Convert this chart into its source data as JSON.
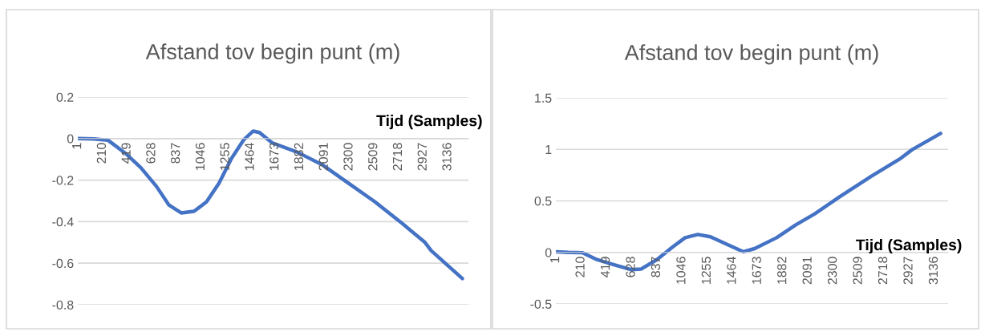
{
  "chart_data": [
    {
      "type": "line",
      "title": "Afstand tov begin punt (m)",
      "xlabel": "Tijd (Samples)",
      "xlim": [
        1,
        3310
      ],
      "xticks": [
        1,
        210,
        419,
        628,
        837,
        1046,
        1255,
        1464,
        1673,
        1882,
        2091,
        2300,
        2509,
        2718,
        2927,
        3136
      ],
      "ylim": [
        -0.8,
        0.2
      ],
      "yticks": [
        -0.8,
        -0.6,
        -0.4,
        -0.2,
        0,
        0.2
      ],
      "grid": "y",
      "legend": false,
      "marker": "none",
      "line_style": "solid",
      "series": [
        {
          "color": "#4472c4",
          "x": [
            1,
            138,
            257,
            403,
            535,
            667,
            773,
            879,
            985,
            1091,
            1197,
            1303,
            1408,
            1487,
            1540,
            1646,
            1858,
            2069,
            2281,
            2519,
            2731,
            2942,
            2995,
            3259
          ],
          "values": [
            0,
            -0.002,
            -0.008,
            -0.07,
            -0.14,
            -0.23,
            -0.32,
            -0.358,
            -0.35,
            -0.305,
            -0.215,
            -0.095,
            -0.005,
            0.036,
            0.029,
            -0.02,
            -0.065,
            -0.125,
            -0.21,
            -0.305,
            -0.4,
            -0.5,
            -0.54,
            -0.674
          ]
        }
      ]
    },
    {
      "type": "line",
      "title": "Afstand tov begin punt (m)",
      "xlabel": "Tijd (Samples)",
      "xlim": [
        1,
        3250
      ],
      "xticks": [
        1,
        210,
        419,
        628,
        837,
        1046,
        1255,
        1464,
        1673,
        1882,
        2091,
        2300,
        2509,
        2718,
        2927,
        3136
      ],
      "ylim": [
        -0.5,
        1.5
      ],
      "yticks": [
        -0.5,
        0,
        0.5,
        1,
        1.5
      ],
      "grid": "y",
      "legend": false,
      "marker": "none",
      "line_style": "solid",
      "series": [
        {
          "color": "#4472c4",
          "x": [
            1,
            105,
            223,
            341,
            471,
            628,
            706,
            838,
            968,
            1072,
            1177,
            1281,
            1412,
            1555,
            1647,
            1830,
            1986,
            2143,
            2352,
            2613,
            2848,
            2952,
            3188
          ],
          "values": [
            0.006,
            0,
            -0.003,
            -0.07,
            -0.116,
            -0.168,
            -0.162,
            -0.07,
            0.052,
            0.143,
            0.174,
            0.152,
            0.082,
            0.006,
            0.037,
            0.143,
            0.265,
            0.372,
            0.54,
            0.738,
            0.905,
            0.997,
            1.155
          ]
        }
      ]
    }
  ]
}
